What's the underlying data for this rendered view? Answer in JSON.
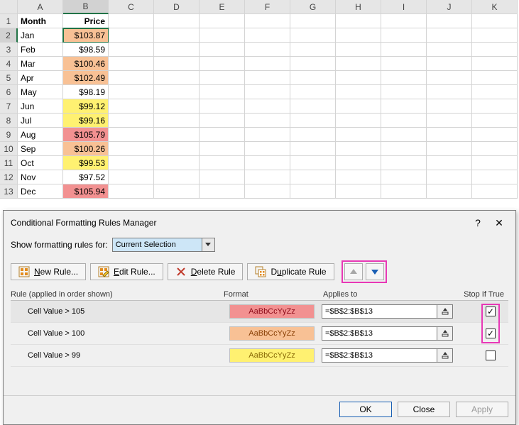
{
  "sheet": {
    "columns": [
      "A",
      "B",
      "C",
      "D",
      "E",
      "F",
      "G",
      "H",
      "I",
      "J",
      "K"
    ],
    "headers": {
      "A": "Month",
      "B": "Price"
    },
    "selected_cell": "B2",
    "rows": [
      {
        "n": 1,
        "A": "Month",
        "B": "Price",
        "bold": true
      },
      {
        "n": 2,
        "A": "Jan",
        "B": "$103.87",
        "fill": "#f8c195"
      },
      {
        "n": 3,
        "A": "Feb",
        "B": "$98.59"
      },
      {
        "n": 4,
        "A": "Mar",
        "B": "$100.46",
        "fill": "#f8c195"
      },
      {
        "n": 5,
        "A": "Apr",
        "B": "$102.49",
        "fill": "#f8c195"
      },
      {
        "n": 6,
        "A": "May",
        "B": "$98.19"
      },
      {
        "n": 7,
        "A": "Jun",
        "B": "$99.12",
        "fill": "#fff171"
      },
      {
        "n": 8,
        "A": "Jul",
        "B": "$99.16",
        "fill": "#fff171"
      },
      {
        "n": 9,
        "A": "Aug",
        "B": "$105.79",
        "fill": "#f29191"
      },
      {
        "n": 10,
        "A": "Sep",
        "B": "$100.26",
        "fill": "#f8c195"
      },
      {
        "n": 11,
        "A": "Oct",
        "B": "$99.53",
        "fill": "#fff171"
      },
      {
        "n": 12,
        "A": "Nov",
        "B": "$97.52"
      },
      {
        "n": 13,
        "A": "Dec",
        "B": "$105.94",
        "fill": "#f29191"
      }
    ]
  },
  "dialog": {
    "title": "Conditional Formatting Rules Manager",
    "help_glyph": "?",
    "close_glyph": "✕",
    "show_for_label": "Show formatting rules for:",
    "show_for_value": "Current Selection",
    "buttons": {
      "new": "New Rule...",
      "edit": "Edit Rule...",
      "delete": "Delete Rule",
      "duplicate": "Duplicate Rule"
    },
    "grid_headers": {
      "rule": "Rule (applied in order shown)",
      "format": "Format",
      "applies": "Applies to",
      "stop": "Stop If True"
    },
    "preview_text": "AaBbCcYyZz",
    "rules": [
      {
        "desc": "Cell Value > 105",
        "fill": "#f29191",
        "text": "#8c0917",
        "applies": "=$B$2:$B$13",
        "stop": true,
        "selected": true
      },
      {
        "desc": "Cell Value > 100",
        "fill": "#f8c195",
        "text": "#8a4107",
        "applies": "=$B$2:$B$13",
        "stop": true
      },
      {
        "desc": "Cell Value > 99",
        "fill": "#fff171",
        "text": "#8a6a07",
        "applies": "=$B$2:$B$13",
        "stop": false
      }
    ],
    "footer": {
      "ok": "OK",
      "close": "Close",
      "apply": "Apply"
    }
  }
}
